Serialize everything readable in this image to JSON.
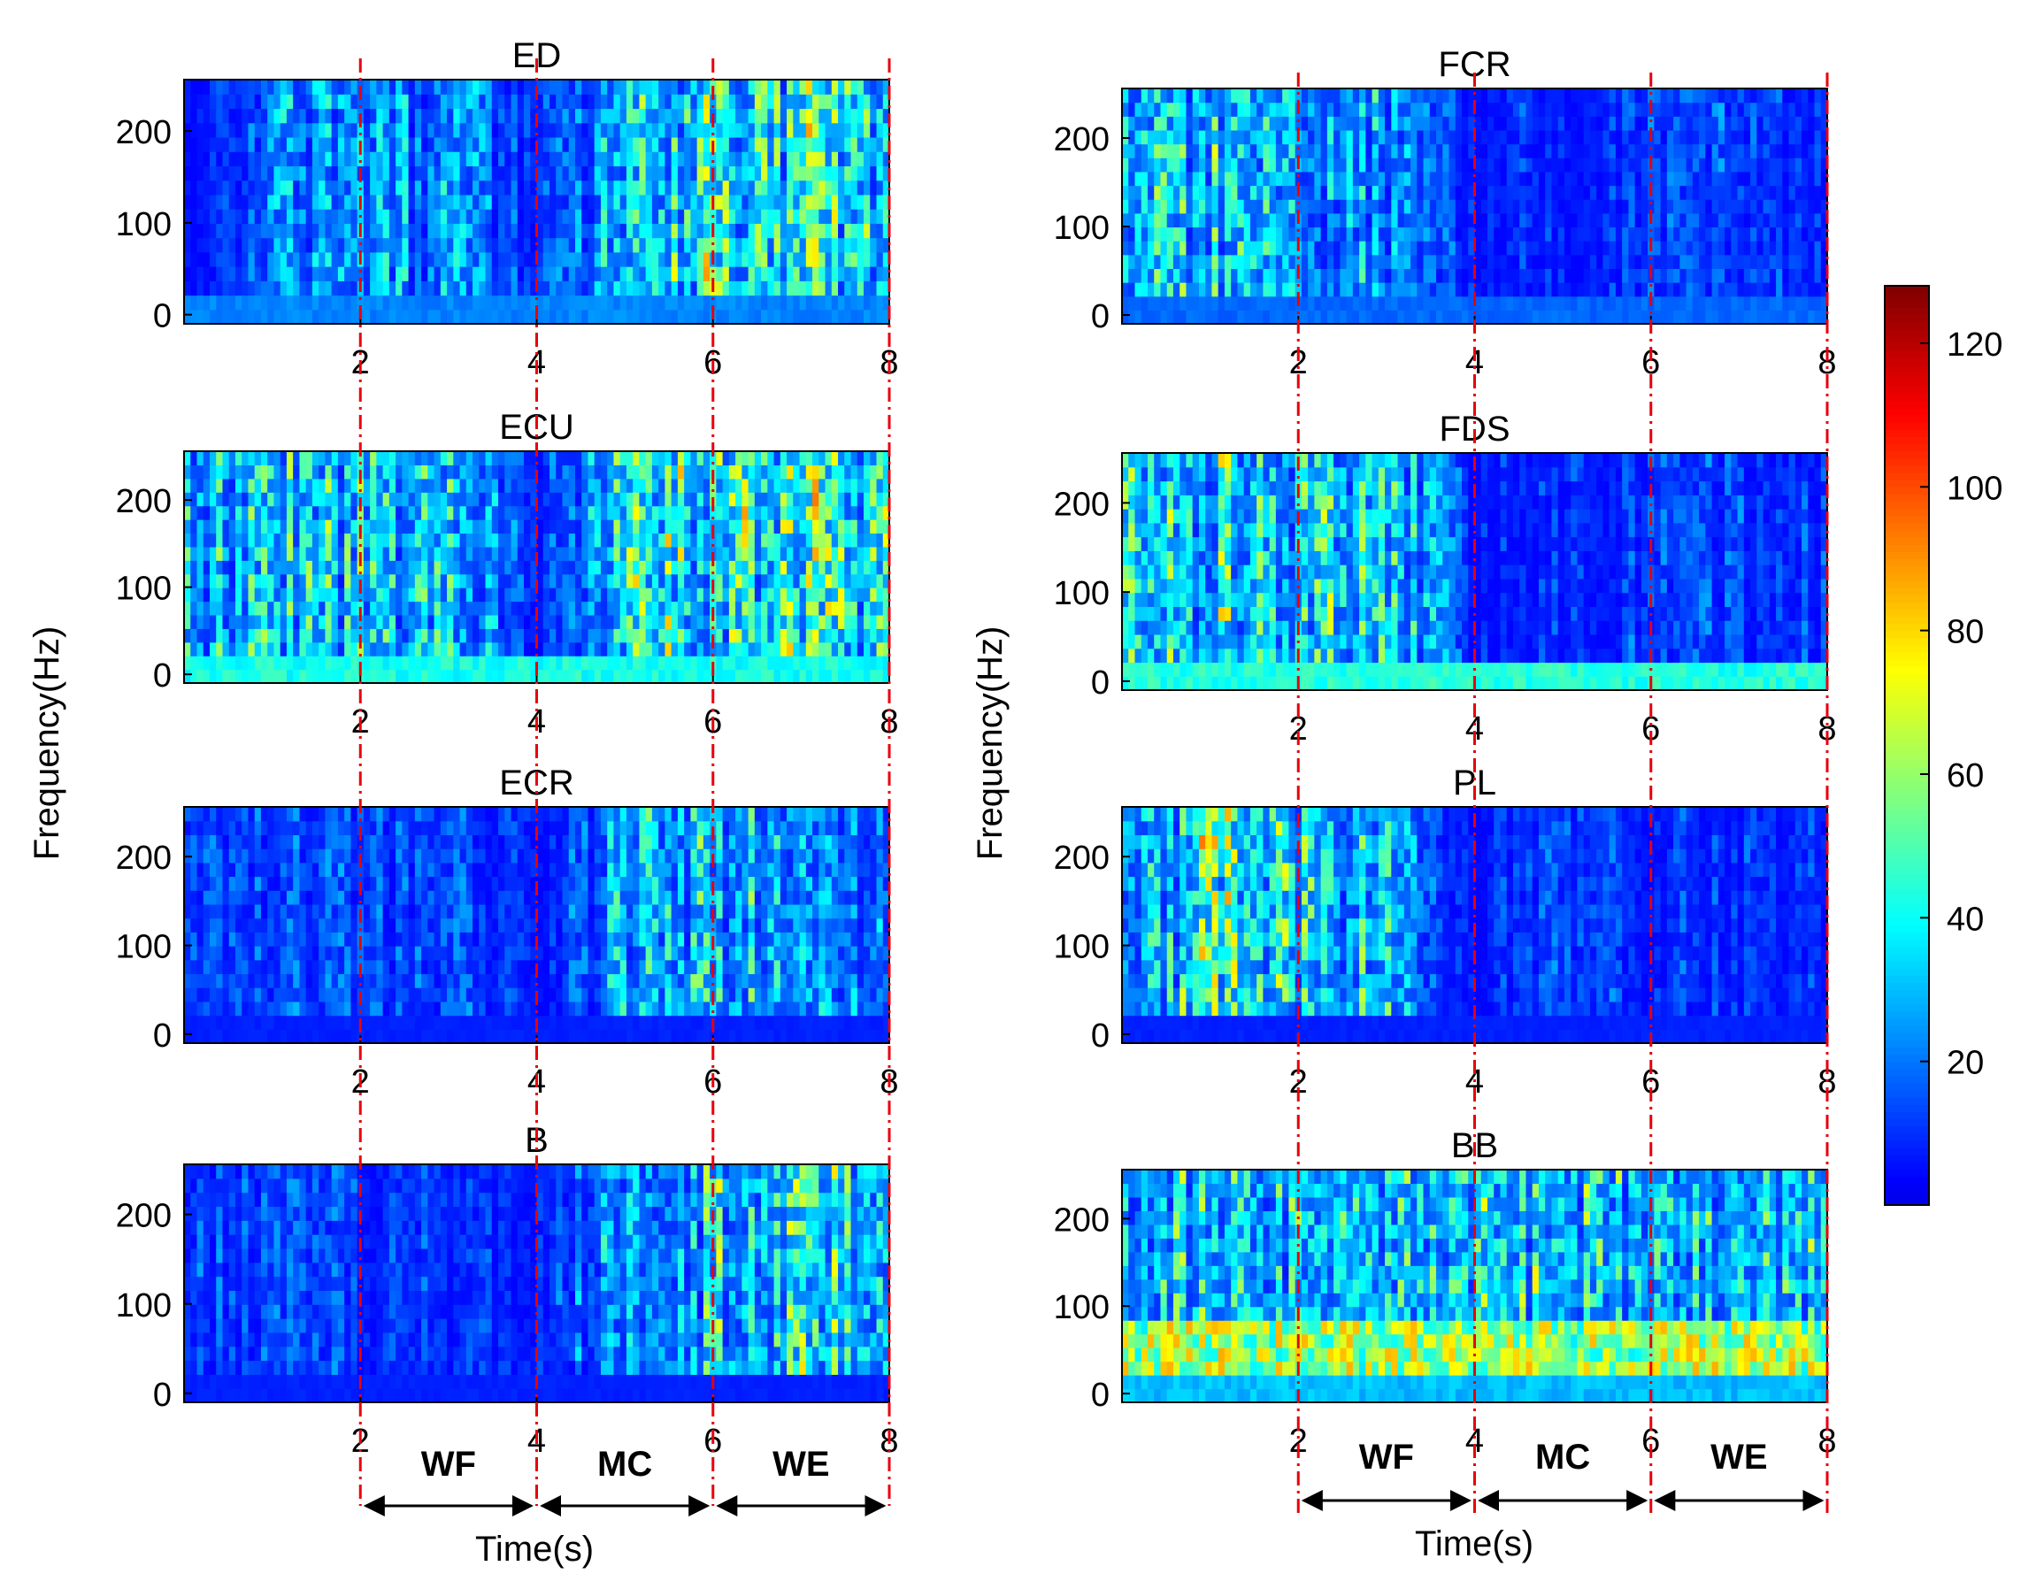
{
  "colors": {
    "colormap": [
      "#00008f",
      "#0000ff",
      "#00ffff",
      "#ffff00",
      "#ff0000",
      "#800000"
    ],
    "marker_line": "#e8000b",
    "axes": "#000000"
  },
  "chart_data": {
    "type": "heatmap",
    "layout": "4 rows x 2 columns of spectrogram panels",
    "shared_ylabel": "Frequency(Hz)",
    "shared_xlabel": "Time(s)",
    "xlim": [
      0,
      8
    ],
    "ylim": [
      -10,
      256
    ],
    "xticks": [
      2,
      4,
      6,
      8
    ],
    "yticks": [
      0,
      100,
      200
    ],
    "colorbar": {
      "min": 0,
      "max": 128,
      "ticks": [
        20,
        40,
        60,
        80,
        100,
        120
      ],
      "colormap": "jet"
    },
    "phase_markers": [
      2,
      4,
      6,
      8
    ],
    "phases": [
      {
        "label": "WF",
        "start": 2,
        "end": 4
      },
      {
        "label": "MC",
        "start": 4,
        "end": 6
      },
      {
        "label": "WE",
        "start": 6,
        "end": 8
      }
    ],
    "panels": [
      {
        "title": "ED",
        "column": "left",
        "row": 1,
        "mean_intensity_by_time": [
          [
            0,
            5
          ],
          [
            1,
            22
          ],
          [
            2,
            24
          ],
          [
            3,
            24
          ],
          [
            4,
            10
          ],
          [
            5,
            30
          ],
          [
            6,
            45
          ],
          [
            7,
            45
          ],
          [
            8,
            40
          ]
        ],
        "baseline_band": 22
      },
      {
        "title": "ECU",
        "column": "left",
        "row": 2,
        "mean_intensity_by_time": [
          [
            0,
            30
          ],
          [
            1,
            36
          ],
          [
            2,
            33
          ],
          [
            3,
            34
          ],
          [
            4,
            12
          ],
          [
            5,
            38
          ],
          [
            6,
            45
          ],
          [
            7,
            46
          ],
          [
            8,
            40
          ]
        ],
        "baseline_band": 42
      },
      {
        "title": "ECR",
        "column": "left",
        "row": 3,
        "mean_intensity_by_time": [
          [
            0,
            12
          ],
          [
            1,
            16
          ],
          [
            2,
            14
          ],
          [
            3,
            16
          ],
          [
            4,
            8
          ],
          [
            5,
            28
          ],
          [
            6,
            34
          ],
          [
            7,
            30
          ],
          [
            8,
            24
          ]
        ],
        "baseline_band": 8
      },
      {
        "title": "B",
        "column": "left",
        "row": 4,
        "mean_intensity_by_time": [
          [
            0,
            14
          ],
          [
            1,
            16
          ],
          [
            2,
            12
          ],
          [
            3,
            12
          ],
          [
            4,
            8
          ],
          [
            5,
            28
          ],
          [
            6,
            36
          ],
          [
            7,
            40
          ],
          [
            8,
            32
          ]
        ],
        "baseline_band": 8
      },
      {
        "title": "FCR",
        "column": "right",
        "row": 1,
        "mean_intensity_by_time": [
          [
            0,
            28
          ],
          [
            1,
            36
          ],
          [
            2,
            30
          ],
          [
            3,
            26
          ],
          [
            4,
            10
          ],
          [
            5,
            12
          ],
          [
            6,
            14
          ],
          [
            7,
            14
          ],
          [
            8,
            10
          ]
        ],
        "baseline_band": 18
      },
      {
        "title": "FDS",
        "column": "right",
        "row": 2,
        "mean_intensity_by_time": [
          [
            0,
            36
          ],
          [
            1,
            42
          ],
          [
            2,
            42
          ],
          [
            3,
            40
          ],
          [
            4,
            8
          ],
          [
            5,
            10
          ],
          [
            6,
            14
          ],
          [
            7,
            14
          ],
          [
            8,
            12
          ]
        ],
        "baseline_band": 44
      },
      {
        "title": "PL",
        "column": "right",
        "row": 3,
        "mean_intensity_by_time": [
          [
            0,
            22
          ],
          [
            1,
            46
          ],
          [
            2,
            34
          ],
          [
            3,
            30
          ],
          [
            4,
            8
          ],
          [
            5,
            14
          ],
          [
            6,
            12
          ],
          [
            7,
            12
          ],
          [
            8,
            10
          ]
        ],
        "baseline_band": 8
      },
      {
        "title": "BB",
        "column": "right",
        "row": 4,
        "mean_intensity_by_time": [
          [
            0,
            34
          ],
          [
            1,
            36
          ],
          [
            2,
            36
          ],
          [
            3,
            36
          ],
          [
            4,
            38
          ],
          [
            5,
            38
          ],
          [
            6,
            34
          ],
          [
            7,
            36
          ],
          [
            8,
            34
          ]
        ],
        "baseline_band": 30,
        "low_freq_band_intensity": 72
      }
    ]
  }
}
